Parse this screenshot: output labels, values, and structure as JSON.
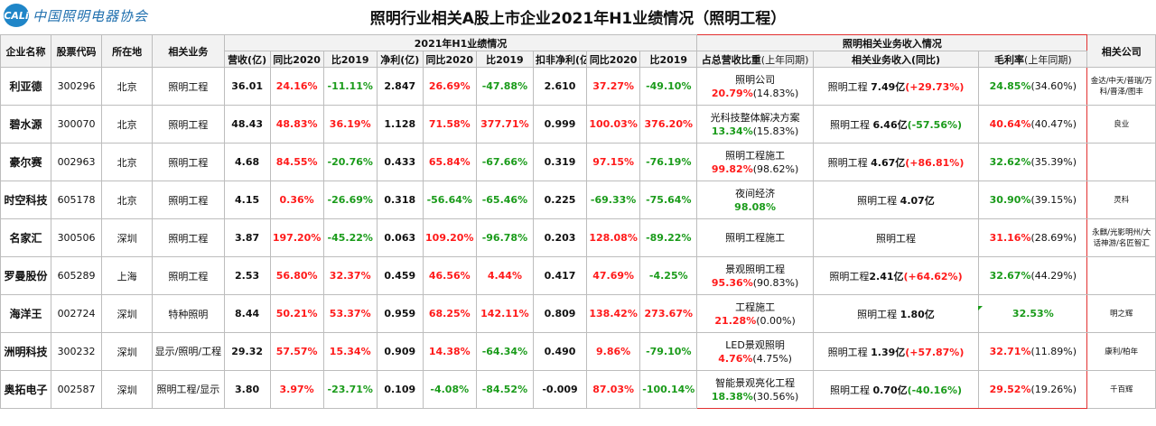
{
  "header": {
    "logo_mark": "CALi",
    "logo_text": "中国照明电器协会",
    "title": "照明行业相关A股上市企业2021年H1业绩情况（照明工程）"
  },
  "columns": {
    "company": "企业名称",
    "code": "股票代码",
    "location": "所在地",
    "business": "相关业务",
    "h1_group": "2021年H1业绩情况",
    "revenue": "营收(亿)",
    "rev_yoy2020": "同比2020",
    "rev_vs2019": "比2019",
    "net_profit": "净利(亿)",
    "np_yoy2020": "同比2020",
    "np_vs2019": "比2019",
    "deducted_np": "扣非净利(亿)",
    "dnp_yoy2020": "同比2020",
    "dnp_vs2019": "比2019",
    "lighting_group": "照明相关业务收入情况",
    "share": "占总营收比重",
    "share_note": "(上年同期)",
    "lighting_rev": "相关业务收入(同比)",
    "gross_margin": "毛利率",
    "gross_margin_note": "(上年同期)",
    "related": "相关公司"
  },
  "rows": [
    {
      "company": "利亚德",
      "code": "300296",
      "location": "北京",
      "business": "照明工程",
      "revenue": "36.01",
      "rev_yoy2020": "24.16%",
      "rev_vs2019": "-11.11%",
      "net_profit": "2.847",
      "np_yoy2020": "26.69%",
      "np_vs2019": "-47.88%",
      "deducted_np": "2.610",
      "dnp_yoy2020": "37.27%",
      "dnp_vs2019": "-49.10%",
      "share_name": "照明公司",
      "share_pct": "20.79%",
      "share_prev": "(14.83%)",
      "lr_label": "照明工程 ",
      "lr_value": "7.49亿",
      "lr_change": "(+29.73%)",
      "lr_change_color": "red",
      "gm": "24.85%",
      "gm_prev": "(34.60%)",
      "related": "金达/中天/普瑞/万科/晋泽/图丰"
    },
    {
      "company": "碧水源",
      "code": "300070",
      "location": "北京",
      "business": "照明工程",
      "revenue": "48.43",
      "rev_yoy2020": "48.83%",
      "rev_vs2019": "36.19%",
      "net_profit": "1.128",
      "np_yoy2020": "71.58%",
      "np_vs2019": "377.71%",
      "deducted_np": "0.999",
      "dnp_yoy2020": "100.03%",
      "dnp_vs2019": "376.20%",
      "share_name": "光科技整体解决方案",
      "share_pct": "13.34%",
      "share_prev": "(15.83%)",
      "lr_label": "照明工程 ",
      "lr_value": "6.46亿",
      "lr_change": "(-57.56%)",
      "lr_change_color": "green",
      "gm": "40.64%",
      "gm_prev": "(40.47%)",
      "gm_color": "red",
      "related": "良业"
    },
    {
      "company": "豪尔赛",
      "code": "002963",
      "location": "北京",
      "business": "照明工程",
      "revenue": "4.68",
      "rev_yoy2020": "84.55%",
      "rev_vs2019": "-20.76%",
      "net_profit": "0.433",
      "np_yoy2020": "65.84%",
      "np_vs2019": "-67.66%",
      "deducted_np": "0.319",
      "dnp_yoy2020": "97.15%",
      "dnp_vs2019": "-76.19%",
      "share_name": "照明工程施工",
      "share_pct": "99.82%",
      "share_prev": "(98.62%)",
      "share_pct_color": "red",
      "lr_label": "照明工程 ",
      "lr_value": "4.67亿",
      "lr_change": "(+86.81%)",
      "lr_change_color": "red",
      "gm": "32.62%",
      "gm_prev": "(35.39%)",
      "related": ""
    },
    {
      "company": "时空科技",
      "code": "605178",
      "location": "北京",
      "business": "照明工程",
      "revenue": "4.15",
      "rev_yoy2020": "0.36%",
      "rev_vs2019": "-26.69%",
      "net_profit": "0.318",
      "np_yoy2020": "-56.64%",
      "np_vs2019": "-65.46%",
      "deducted_np": "0.225",
      "dnp_yoy2020": "-69.33%",
      "dnp_vs2019": "-75.64%",
      "share_name": "夜间经济",
      "share_pct": "98.08%",
      "share_prev": "",
      "lr_label": "照明工程 ",
      "lr_value": "4.07亿",
      "lr_change": "",
      "lr_change_color": "green",
      "gm": "30.90%",
      "gm_prev": "(39.15%)",
      "related": "灵科"
    },
    {
      "company": "名家汇",
      "code": "300506",
      "location": "深圳",
      "business": "照明工程",
      "revenue": "3.87",
      "rev_yoy2020": "197.20%",
      "rev_vs2019": "-45.22%",
      "net_profit": "0.063",
      "np_yoy2020": "109.20%",
      "np_vs2019": "-96.78%",
      "deducted_np": "0.203",
      "dnp_yoy2020": "128.08%",
      "dnp_vs2019": "-89.22%",
      "share_name": "照明工程施工",
      "share_pct": "",
      "share_prev": "",
      "lr_label": "照明工程",
      "lr_value": "",
      "lr_change": "",
      "lr_change_color": "green",
      "gm": "31.16%",
      "gm_prev": "(28.69%)",
      "gm_color": "red",
      "related": "永麒/光影明州/大话神游/名匠智汇"
    },
    {
      "company": "罗曼股份",
      "code": "605289",
      "location": "上海",
      "business": "照明工程",
      "revenue": "2.53",
      "rev_yoy2020": "56.80%",
      "rev_vs2019": "32.37%",
      "net_profit": "0.459",
      "np_yoy2020": "46.56%",
      "np_vs2019": "4.44%",
      "deducted_np": "0.417",
      "dnp_yoy2020": "47.69%",
      "dnp_vs2019": "-4.25%",
      "share_name": "景观照明工程",
      "share_pct": "95.36%",
      "share_prev": "(90.83%)",
      "share_pct_color": "red",
      "lr_label": "照明工程",
      "lr_value": "2.41亿",
      "lr_change": "(+64.62%)",
      "lr_change_color": "red",
      "gm": "32.67%",
      "gm_prev": "(44.29%)",
      "related": ""
    },
    {
      "company": "海洋王",
      "code": "002724",
      "location": "深圳",
      "business": "特种照明",
      "revenue": "8.44",
      "rev_yoy2020": "50.21%",
      "rev_vs2019": "53.37%",
      "net_profit": "0.959",
      "np_yoy2020": "68.25%",
      "np_vs2019": "142.11%",
      "deducted_np": "0.809",
      "dnp_yoy2020": "138.42%",
      "dnp_vs2019": "273.67%",
      "share_name": "工程施工",
      "share_pct": "21.28%",
      "share_prev": "(0.00%)",
      "share_pct_color": "red",
      "lr_label": "照明工程 ",
      "lr_value": "1.80亿",
      "lr_change": "",
      "lr_change_color": "green",
      "gm": "32.53%",
      "gm_prev": "",
      "related": "明之辉"
    },
    {
      "company": "洲明科技",
      "code": "300232",
      "location": "深圳",
      "business": "显示/照明/工程",
      "revenue": "29.32",
      "rev_yoy2020": "57.57%",
      "rev_vs2019": "15.34%",
      "net_profit": "0.909",
      "np_yoy2020": "14.38%",
      "np_vs2019": "-64.34%",
      "deducted_np": "0.490",
      "dnp_yoy2020": "9.86%",
      "dnp_vs2019": "-79.10%",
      "share_name": "LED景观照明",
      "share_pct": "4.76%",
      "share_prev": "(4.75%)",
      "share_pct_color": "red",
      "lr_label": "照明工程 ",
      "lr_value": "1.39亿",
      "lr_change": "(+57.87%)",
      "lr_change_color": "red",
      "gm": "32.71%",
      "gm_prev": "(11.89%)",
      "gm_color": "red",
      "related": "康利/柏年"
    },
    {
      "company": "奥拓电子",
      "code": "002587",
      "location": "深圳",
      "business": "照明工程/显示",
      "revenue": "3.80",
      "rev_yoy2020": "3.97%",
      "rev_vs2019": "-23.71%",
      "net_profit": "0.109",
      "np_yoy2020": "-4.08%",
      "np_vs2019": "-84.52%",
      "deducted_np": "-0.009",
      "dnp_yoy2020": "87.03%",
      "dnp_vs2019": "-100.14%",
      "share_name": "智能景观亮化工程",
      "share_pct": "18.38%",
      "share_prev": "(30.56%)",
      "lr_label": "照明工程 ",
      "lr_value": "0.70亿",
      "lr_change": "(-40.16%)",
      "lr_change_color": "green",
      "gm": "29.52%",
      "gm_prev": "(19.26%)",
      "gm_color": "red",
      "related": "千百辉"
    }
  ]
}
